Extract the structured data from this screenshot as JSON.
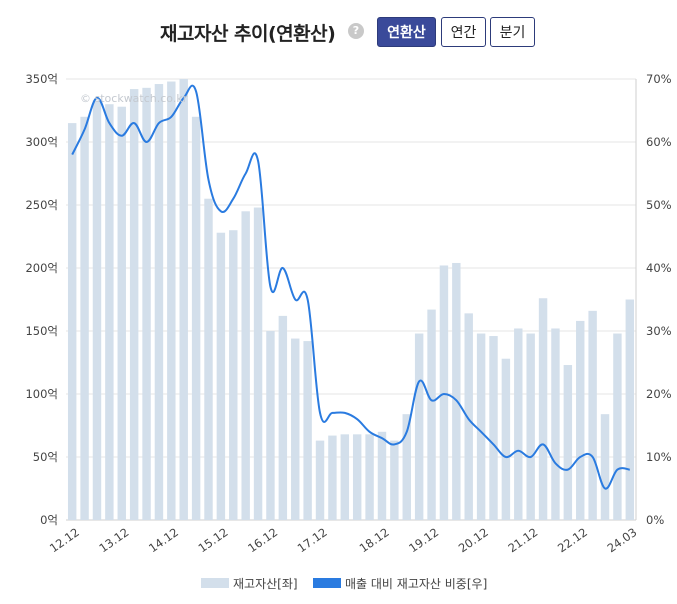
{
  "header": {
    "title": "재고자산 추이(연환산)",
    "help": "?",
    "tabs": [
      {
        "label": "연환산",
        "active": true
      },
      {
        "label": "연간",
        "active": false
      },
      {
        "label": "분기",
        "active": false
      }
    ]
  },
  "watermark": "© stockwatch.co.kr",
  "colors": {
    "bar": "#d3dfeb",
    "line": "#2a7be0",
    "grid": "#e6e6e6",
    "accent": "#3a4a9a"
  },
  "chart_data": {
    "type": "bar",
    "y_left": {
      "ticks": [
        "0억",
        "50억",
        "100억",
        "150억",
        "200억",
        "250억",
        "300억",
        "350억"
      ],
      "lim": [
        0,
        350
      ]
    },
    "y_right": {
      "ticks": [
        "0%",
        "10%",
        "20%",
        "30%",
        "40%",
        "50%",
        "60%",
        "70%"
      ],
      "lim": [
        0,
        70
      ]
    },
    "x_ticks": [
      "12.12",
      "13.12",
      "14.12",
      "15.12",
      "16.12",
      "17.12",
      "18.12",
      "19.12",
      "20.12",
      "21.12",
      "22.12",
      "24.03"
    ],
    "series": [
      {
        "name": "재고자산[좌]",
        "type": "bar",
        "values": [
          315,
          320,
          333,
          330,
          328,
          342,
          343,
          346,
          348,
          350,
          320,
          255,
          228,
          230,
          245,
          248,
          150,
          162,
          144,
          142,
          63,
          67,
          68,
          68,
          68,
          70,
          63,
          84,
          148,
          167,
          202,
          204,
          164,
          148,
          146,
          128,
          152,
          148,
          176,
          152,
          123,
          158,
          166,
          84,
          148,
          175
        ]
      },
      {
        "name": "매출 대비 재고자산 비중[우]",
        "type": "line",
        "values": [
          58,
          62,
          67,
          63,
          61,
          63,
          60,
          63,
          64,
          67,
          68,
          54,
          49,
          51,
          55,
          57,
          37,
          40,
          35,
          35,
          17,
          17,
          17,
          16,
          14,
          13,
          12,
          14,
          22,
          19,
          20,
          19,
          16,
          14,
          12,
          10,
          11,
          10,
          12,
          9,
          8,
          10,
          10,
          5,
          8,
          8
        ]
      }
    ],
    "grid": true,
    "legend": "bottom"
  }
}
